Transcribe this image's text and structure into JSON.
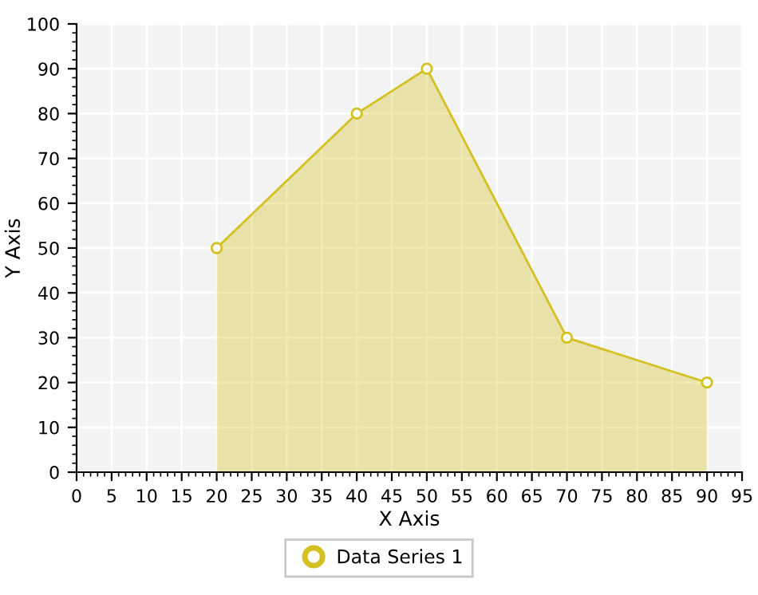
{
  "chart_data": {
    "type": "area",
    "xlabel": "X Axis",
    "ylabel": "Y Axis",
    "x": [
      20,
      40,
      50,
      70,
      90
    ],
    "series": [
      {
        "name": "Data Series 1",
        "color": "#d4c020",
        "values": [
          50,
          80,
          90,
          30,
          20
        ]
      }
    ],
    "xlim": [
      0,
      95
    ],
    "xticks": [
      0,
      5,
      10,
      15,
      20,
      25,
      30,
      35,
      40,
      45,
      50,
      55,
      60,
      65,
      70,
      75,
      80,
      85,
      90,
      95
    ],
    "ylim": [
      0,
      100
    ],
    "yticks": [
      0,
      10,
      20,
      30,
      40,
      50,
      60,
      70,
      80,
      90,
      100
    ],
    "grid": true,
    "legend": "bottom",
    "marker": "circle",
    "line_style": "solid"
  }
}
